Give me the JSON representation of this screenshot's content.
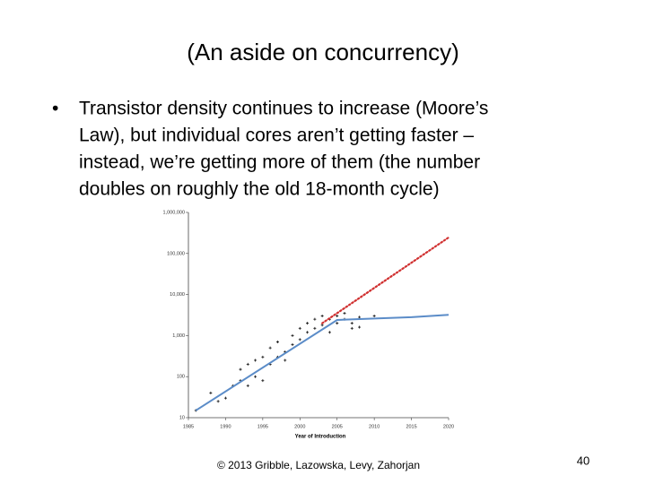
{
  "slide": {
    "title": "(An aside on concurrency)",
    "bullet_lines": [
      "Transistor density continues to increase (Moore’s",
      "Law), but individual cores aren’t getting faster –",
      "instead, we’re getting more of them (the number",
      "doubles on roughly the old 18-month cycle)"
    ],
    "footer": "© 2013 Gribble, Lazowska, Levy, Zahorjan",
    "page_number": "40"
  },
  "chart_data": {
    "type": "scatter",
    "xlabel": "Year of Introduction",
    "xlim": [
      1985,
      2020
    ],
    "xticks": [
      1985,
      1990,
      1995,
      2000,
      2005,
      2010,
      2015,
      2020
    ],
    "ylim": [
      10,
      1000000
    ],
    "yticks": [
      10,
      100,
      {
        "value": 1000,
        "label": "1,000"
      },
      {
        "value": 10000,
        "label": "10,000"
      },
      {
        "value": 100000,
        "label": "100,000"
      },
      {
        "value": 1000000,
        "label": "1,000,000"
      }
    ],
    "log_y": true,
    "grid": false,
    "series": [
      {
        "kind": "points",
        "color": "#222222",
        "x": [
          1986,
          1988,
          1989,
          1990,
          1991,
          1992,
          1992,
          1993,
          1993,
          1994,
          1994,
          1995,
          1995,
          1996,
          1996,
          1997,
          1997,
          1998,
          1998,
          1999,
          1999,
          2000,
          2000,
          2001,
          2001,
          2002,
          2002,
          2003,
          2003,
          2004,
          2004,
          2005,
          2005,
          2006,
          2006,
          2007,
          2007,
          2008,
          2008,
          2010
        ],
        "values": [
          15,
          40,
          25,
          30,
          60,
          150,
          80,
          200,
          60,
          100,
          250,
          300,
          80,
          200,
          500,
          300,
          700,
          400,
          250,
          600,
          1000,
          800,
          1500,
          1200,
          2000,
          2500,
          1500,
          3000,
          1800,
          2500,
          1200,
          3000,
          2000,
          2500,
          3500,
          2000,
          1500,
          2800,
          1600,
          3000
        ]
      },
      {
        "kind": "line",
        "color": "#5b8cc8",
        "x": [
          1986,
          2005,
          2010,
          2015,
          2020
        ],
        "values": [
          15,
          2400,
          2600,
          2800,
          3200
        ]
      },
      {
        "kind": "dotted",
        "color": "#d03030",
        "x": [
          2003,
          2020
        ],
        "values": [
          2000,
          245000
        ]
      }
    ]
  }
}
